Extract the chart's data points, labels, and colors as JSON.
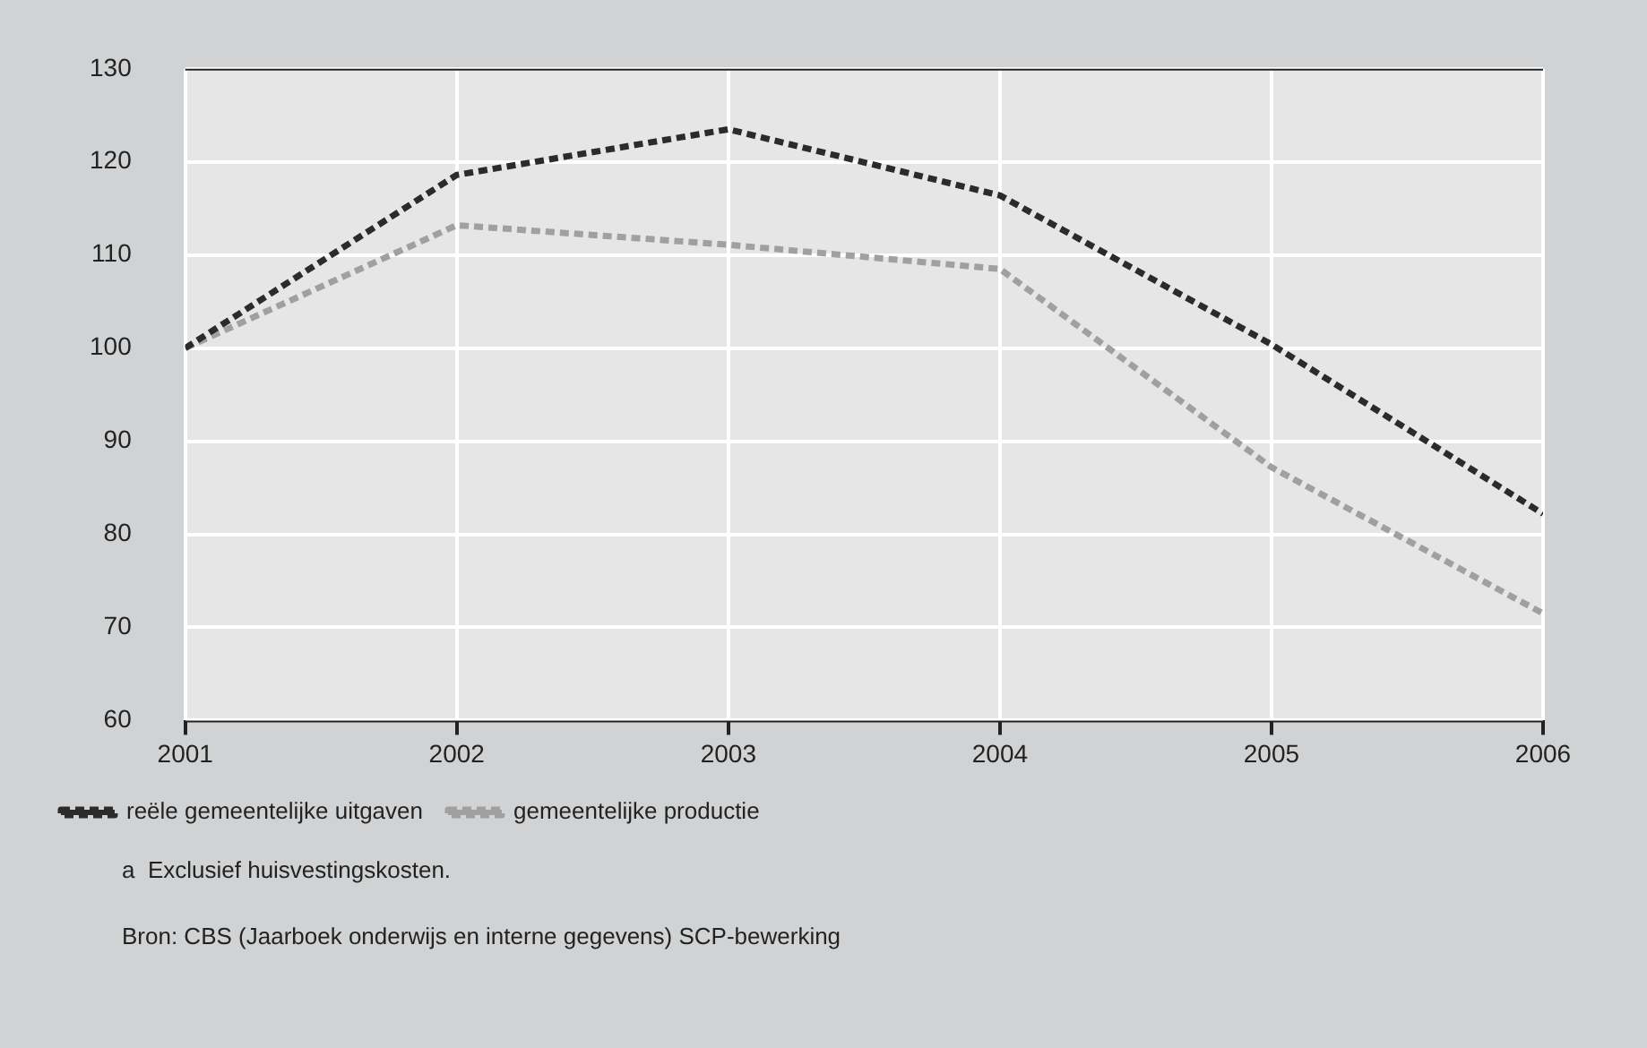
{
  "chart_data": {
    "type": "line",
    "x": [
      2001,
      2002,
      2003,
      2004,
      2005,
      2006
    ],
    "series": [
      {
        "name": "reële gemeentelijke uitgaven",
        "color": "#2b2b2b",
        "values": [
          100,
          118.6,
          123.5,
          116.4,
          100.4,
          82.2
        ]
      },
      {
        "name": "gemeentelijke productie",
        "color": "#a0a0a0",
        "values": [
          100,
          113.2,
          111.1,
          108.5,
          87.2,
          71.5
        ]
      }
    ],
    "xlim": [
      2001,
      2006
    ],
    "xticks": [
      2001,
      2002,
      2003,
      2004,
      2005,
      2006
    ],
    "ylim": [
      60,
      130
    ],
    "yticks": [
      60,
      70,
      80,
      90,
      100,
      110,
      120,
      130
    ],
    "grid": true,
    "legend": "bottom",
    "marker": "none",
    "line_style": "dashed",
    "annotations": [
      "a  Exclusief huisvestingskosten.",
      "Bron: CBS (Jaarboek onderwijs en interne gegevens) SCP-bewerking"
    ]
  }
}
